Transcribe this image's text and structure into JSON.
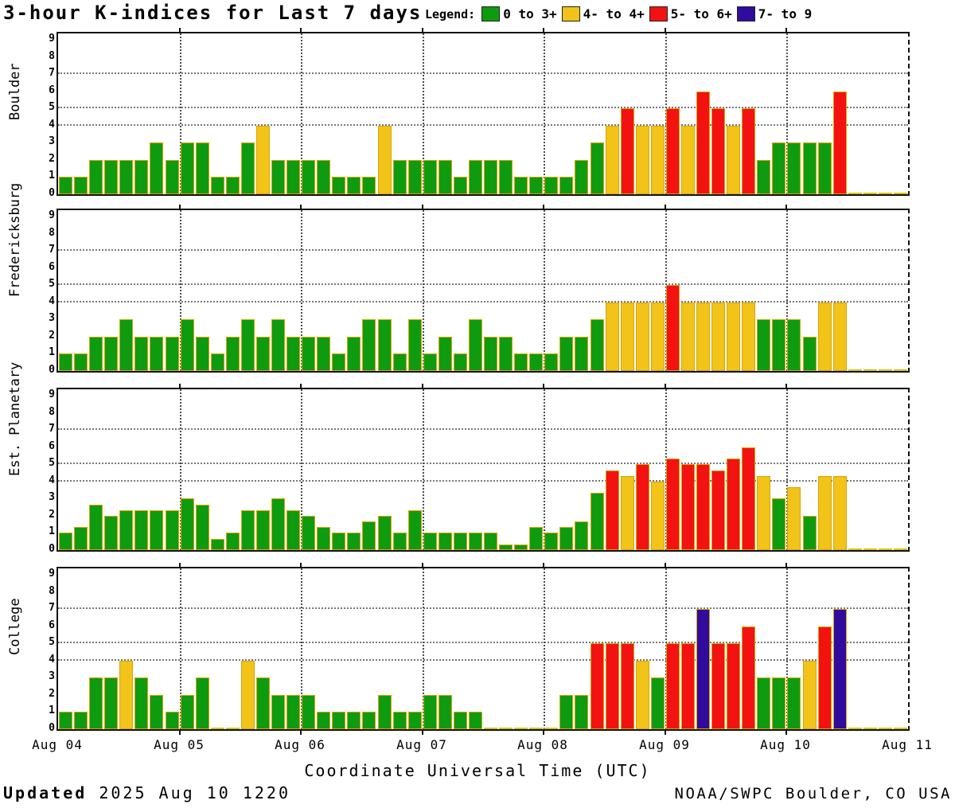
{
  "title": "3-hour K-indices for Last 7 days",
  "legend": {
    "label": "Legend:",
    "items": [
      {
        "label": "0 to 3+",
        "color": "#0f9b0f"
      },
      {
        "label": "4- to 4+",
        "color": "#f2c319"
      },
      {
        "label": "5- to 6+",
        "color": "#f31212"
      },
      {
        "label": "7- to 9",
        "color": "#300b9e"
      }
    ]
  },
  "x_axis": {
    "title": "Coordinate Universal Time (UTC)",
    "tick_labels": [
      "Aug 04",
      "Aug 05",
      "Aug 06",
      "Aug 07",
      "Aug 08",
      "Aug 09",
      "Aug 10",
      "Aug 11"
    ]
  },
  "y_axis": {
    "tick_labels": [
      "0",
      "1",
      "2",
      "3",
      "4",
      "5",
      "6",
      "7",
      "8",
      "9"
    ],
    "gridline_values": [
      4,
      5,
      7
    ],
    "range": [
      0,
      9
    ]
  },
  "footer": {
    "updated_label": "Updated",
    "updated_value": "2025 Aug 10 1220",
    "credit": "NOAA/SWPC Boulder, CO USA"
  },
  "chart_data": {
    "type": "bar",
    "bins_per_day": 8,
    "bin_hours": 3,
    "days": [
      "Aug 04",
      "Aug 05",
      "Aug 06",
      "Aug 07",
      "Aug 08",
      "Aug 09",
      "Aug 10"
    ],
    "ylim": [
      0,
      9
    ],
    "grid": "dotted at K=4,5,7 and at day boundaries",
    "legend_position": "top",
    "colors": {
      "green": "#0f9b0f",
      "yellow": "#f2c319",
      "red": "#f31212",
      "purple": "#300b9e"
    },
    "color_rule": "green <3.67, yellow 3.67-4.33, red 4.67-6.33, purple >=6.67",
    "series": [
      {
        "name": "Boulder",
        "values": [
          1,
          1,
          2,
          2,
          2,
          2,
          3,
          2,
          3,
          3,
          1,
          1,
          3,
          4,
          2,
          2,
          2,
          2,
          1,
          1,
          1,
          4,
          2,
          2,
          2,
          2,
          1,
          2,
          2,
          2,
          1,
          1,
          1,
          1,
          2,
          3,
          4,
          5,
          4,
          4,
          5,
          4,
          6,
          5,
          4,
          5,
          2,
          3,
          3,
          3,
          3,
          6,
          0,
          0,
          0,
          0
        ]
      },
      {
        "name": "Fredericksburg",
        "values": [
          1,
          1,
          2,
          2,
          3,
          2,
          2,
          2,
          3,
          2,
          1,
          2,
          3,
          2,
          3,
          2,
          2,
          2,
          1,
          2,
          3,
          3,
          1,
          3,
          1,
          2,
          1,
          3,
          2,
          2,
          1,
          1,
          1,
          2,
          2,
          3,
          4,
          4,
          4,
          4,
          5,
          4,
          4,
          4,
          4,
          4,
          3,
          3,
          3,
          2,
          4,
          4,
          0,
          0,
          0,
          0
        ]
      },
      {
        "name": "Est. Planetary",
        "values": [
          1,
          1.33,
          2.67,
          2,
          2.33,
          2.33,
          2.33,
          2.33,
          3,
          2.67,
          0.67,
          1,
          2.33,
          2.33,
          3,
          2.33,
          2,
          1.33,
          1,
          1,
          1.67,
          2,
          1,
          2.33,
          1,
          1,
          1,
          1,
          1,
          0.33,
          0.33,
          1.33,
          1,
          1.33,
          1.67,
          3.33,
          4.67,
          4.33,
          5,
          4,
          5.33,
          5,
          5,
          4.67,
          5.33,
          6,
          4.33,
          3,
          3.67,
          2,
          4.33,
          4.33,
          0,
          0,
          0,
          0
        ]
      },
      {
        "name": "College",
        "values": [
          1,
          1,
          3,
          3,
          4,
          3,
          2,
          1,
          2,
          3,
          0,
          0,
          4,
          3,
          2,
          2,
          2,
          1,
          1,
          1,
          1,
          2,
          1,
          1,
          2,
          2,
          1,
          1,
          0,
          0,
          0,
          0,
          0,
          2,
          2,
          5,
          5,
          5,
          4,
          3,
          5,
          5,
          7,
          5,
          5,
          6,
          3,
          3,
          3,
          4,
          6,
          7,
          0,
          0,
          0,
          0
        ]
      }
    ]
  }
}
